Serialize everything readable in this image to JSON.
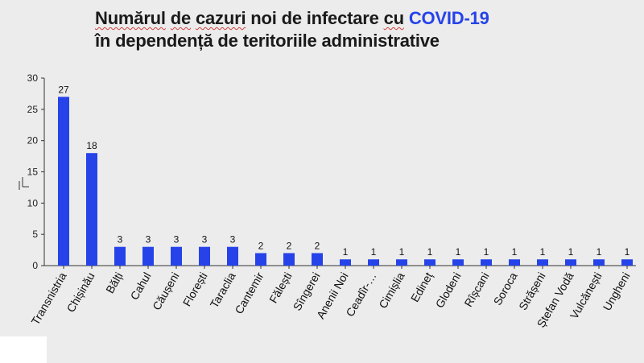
{
  "title": {
    "line1_part1": "Numărul",
    "line1_part2": "de",
    "line1_part3": "cazuri",
    "line1_part4": "noi de infectare",
    "line1_part5": "cu",
    "line1_part6": "COVID-19",
    "line2": "în dependență de teritoriile administrative"
  },
  "colors": {
    "bar": "#2643e9",
    "accent": "#2643e9",
    "background": "#ececec"
  },
  "chart_data": {
    "type": "bar",
    "title": "Numărul de cazuri noi de infectare cu COVID-19 în dependență de teritoriile administrative",
    "categories": [
      "Transnistria",
      "Chișinău",
      "Bălți",
      "Cahul",
      "Căușeni",
      "Florești",
      "Taraclia",
      "Cantemir",
      "Fălești",
      "Sîngerei",
      "Anenii Noi",
      "Ceadîr-…",
      "Cimișlia",
      "Edineț",
      "Glodeni",
      "Rîșcani",
      "Soroca",
      "Strășeni",
      "Ștefan Vodă",
      "Vulcănești",
      "Ungheni"
    ],
    "values": [
      27,
      18,
      3,
      3,
      3,
      3,
      3,
      2,
      2,
      2,
      1,
      1,
      1,
      1,
      1,
      1,
      1,
      1,
      1,
      1,
      1
    ],
    "yticks": [
      0,
      5,
      10,
      15,
      20,
      25,
      30
    ],
    "ylim": [
      0,
      30
    ],
    "xlabel": "",
    "ylabel": "",
    "data_labels": true,
    "legend": "none"
  }
}
